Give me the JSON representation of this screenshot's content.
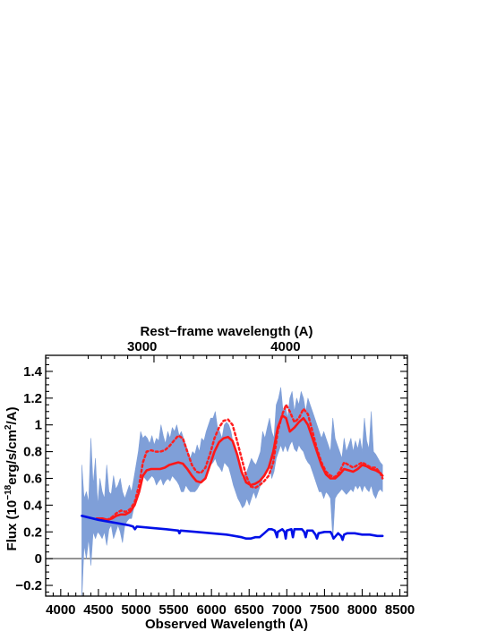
{
  "chart_data": {
    "type": "line",
    "xlabel": "Observed Wavelength (A)",
    "ylabel_main": "Flux (10",
    "ylabel_exp": "−18",
    "ylabel_mid": "erg/s/cm",
    "ylabel_exp2": "2",
    "ylabel_end": "/A)",
    "x2label": "Rest−frame wavelength (A)",
    "xlim": [
      3800,
      8600
    ],
    "ylim": [
      -0.28,
      1.52
    ],
    "x_ticks": [
      4000,
      4500,
      5000,
      5500,
      6000,
      6500,
      7000,
      7500,
      8000,
      8500
    ],
    "x_tick_labels": [
      "4000",
      "4500",
      "5000",
      "5500",
      "6000",
      "6500",
      "7000",
      "7500",
      "8000",
      "8500"
    ],
    "y_ticks": [
      -0.2,
      0,
      0.2,
      0.4,
      0.6,
      0.8,
      1,
      1.2,
      1.4
    ],
    "y_tick_labels": [
      "−0.2",
      "0",
      "0.2",
      "0.4",
      "0.6",
      "0.8",
      "1",
      "1.2",
      "1.4"
    ],
    "top_ticks_obs": [
      5080,
      6983
    ],
    "top_tick_labels": [
      "3000",
      "4000"
    ],
    "zero_line": 0,
    "series": [
      {
        "style": "fill",
        "color": "#7f9fd8",
        "x": [
          4280,
          4310,
          4340,
          4370,
          4400,
          4430,
          4460,
          4490,
          4520,
          4550,
          4580,
          4610,
          4640,
          4670,
          4700,
          4730,
          4760,
          4790,
          4820,
          4850,
          4880,
          4910,
          4940,
          4970,
          5000,
          5030,
          5060,
          5090,
          5120,
          5150,
          5180,
          5210,
          5240,
          5270,
          5300,
          5330,
          5360,
          5390,
          5420,
          5450,
          5480,
          5510,
          5540,
          5570,
          5600,
          5630,
          5660,
          5690,
          5720,
          5750,
          5780,
          5810,
          5840,
          5870,
          5900,
          5930,
          5960,
          5990,
          6020,
          6050,
          6080,
          6110,
          6140,
          6170,
          6200,
          6230,
          6260,
          6290,
          6320,
          6350,
          6380,
          6410,
          6440,
          6470,
          6500,
          6530,
          6560,
          6590,
          6620,
          6650,
          6680,
          6710,
          6740,
          6770,
          6800,
          6830,
          6860,
          6890,
          6920,
          6950,
          6980,
          7010,
          7040,
          7070,
          7100,
          7130,
          7160,
          7190,
          7220,
          7250,
          7280,
          7310,
          7340,
          7370,
          7400,
          7430,
          7460,
          7490,
          7520,
          7550,
          7580,
          7610,
          7640,
          7670,
          7700,
          7730,
          7760,
          7790,
          7820,
          7850,
          7880,
          7910,
          7940,
          7970,
          8000,
          8030,
          8060,
          8090,
          8120,
          8150,
          8180,
          8210,
          8240,
          8270
        ],
        "upper": [
          0.7,
          0.45,
          0.5,
          0.42,
          0.9,
          0.55,
          0.75,
          0.4,
          0.6,
          0.5,
          0.45,
          0.7,
          0.5,
          0.48,
          0.62,
          0.52,
          0.55,
          0.6,
          0.5,
          0.45,
          0.5,
          0.55,
          0.5,
          0.6,
          0.7,
          0.8,
          0.95,
          0.9,
          0.92,
          0.9,
          0.86,
          0.92,
          0.85,
          0.9,
          0.88,
          1.0,
          0.92,
          0.86,
          0.95,
          0.9,
          0.98,
          0.95,
          1.0,
          0.92,
          0.95,
          0.9,
          0.85,
          0.8,
          0.75,
          0.8,
          0.78,
          0.85,
          0.8,
          0.9,
          0.88,
          0.95,
          1.0,
          1.05,
          1.05,
          1.1,
          0.98,
          0.95,
          0.9,
          1.0,
          1.02,
          1.0,
          0.95,
          0.85,
          0.8,
          0.72,
          0.68,
          0.6,
          0.62,
          0.65,
          0.7,
          0.75,
          0.72,
          0.7,
          0.75,
          0.8,
          0.95,
          0.9,
          0.98,
          1.05,
          0.95,
          0.9,
          1.15,
          1.2,
          1.28,
          1.1,
          1.15,
          1.05,
          1.2,
          1.25,
          1.1,
          1.2,
          1.15,
          1.25,
          1.2,
          1.1,
          1.2,
          1.15,
          1.1,
          1.05,
          1.0,
          0.95,
          0.9,
          0.95,
          0.9,
          0.85,
          0.8,
          1.05,
          0.9,
          0.85,
          0.8,
          0.75,
          0.9,
          0.8,
          0.85,
          0.9,
          0.8,
          0.88,
          0.82,
          0.9,
          0.8,
          1.05,
          0.88,
          0.82,
          1.1,
          0.8,
          0.78,
          0.75,
          0.72,
          0.7
        ],
        "lower": [
          -0.3,
          0.1,
          0.0,
          0.15,
          -0.05,
          0.2,
          0.15,
          0.2,
          0.18,
          0.15,
          0.2,
          0.1,
          0.22,
          0.25,
          0.15,
          0.2,
          0.25,
          0.2,
          0.12,
          0.25,
          0.28,
          0.3,
          0.3,
          0.38,
          0.45,
          0.55,
          0.6,
          0.62,
          0.6,
          0.58,
          0.6,
          0.62,
          0.6,
          0.55,
          0.58,
          0.6,
          0.55,
          0.58,
          0.6,
          0.58,
          0.62,
          0.6,
          0.58,
          0.55,
          0.5,
          0.5,
          0.55,
          0.52,
          0.5,
          0.5,
          0.5,
          0.52,
          0.55,
          0.58,
          0.6,
          0.62,
          0.65,
          0.7,
          0.72,
          0.75,
          0.7,
          0.68,
          0.65,
          0.72,
          0.7,
          0.68,
          0.62,
          0.55,
          0.5,
          0.45,
          0.42,
          0.38,
          0.4,
          0.45,
          0.4,
          0.45,
          0.5,
          0.45,
          0.5,
          0.55,
          0.6,
          0.62,
          0.65,
          0.7,
          0.6,
          0.65,
          0.75,
          0.8,
          0.85,
          0.8,
          0.85,
          0.8,
          0.85,
          0.88,
          0.82,
          0.8,
          0.85,
          0.82,
          0.8,
          0.75,
          0.72,
          0.7,
          0.65,
          0.6,
          0.55,
          0.5,
          0.5,
          0.45,
          0.5,
          0.48,
          0.45,
          0.15,
          0.45,
          0.48,
          0.5,
          0.52,
          0.5,
          0.48,
          0.5,
          0.52,
          0.5,
          0.55,
          0.52,
          0.55,
          0.5,
          0.55,
          0.52,
          0.5,
          0.55,
          0.48,
          0.45,
          0.5,
          0.52,
          0.5
        ]
      },
      {
        "style": "dotted",
        "color": "#ff2020",
        "x": [
          4480,
          4550,
          4620,
          4680,
          4740,
          4800,
          4860,
          4920,
          4980,
          5040,
          5090,
          5140,
          5200,
          5260,
          5320,
          5380,
          5440,
          5500,
          5560,
          5620,
          5680,
          5740,
          5800,
          5860,
          5920,
          5980,
          6040,
          6100,
          6160,
          6220,
          6280,
          6340,
          6400,
          6460,
          6520,
          6580,
          6640,
          6700,
          6760,
          6820,
          6880,
          6940,
          6990,
          7040,
          7100,
          7160,
          7220,
          7280,
          7340,
          7400,
          7460,
          7520,
          7580,
          7640,
          7700,
          7760,
          7820,
          7880,
          7940,
          8000,
          8060,
          8120,
          8180,
          8240,
          8270
        ],
        "y": [
          0.3,
          0.3,
          0.29,
          0.31,
          0.34,
          0.36,
          0.35,
          0.37,
          0.42,
          0.55,
          0.72,
          0.8,
          0.81,
          0.8,
          0.8,
          0.81,
          0.84,
          0.88,
          0.92,
          0.9,
          0.8,
          0.7,
          0.65,
          0.64,
          0.68,
          0.78,
          0.9,
          0.98,
          1.03,
          1.04,
          1.0,
          0.88,
          0.75,
          0.62,
          0.54,
          0.53,
          0.55,
          0.58,
          0.62,
          0.72,
          0.95,
          1.08,
          1.15,
          1.1,
          1.02,
          1.05,
          1.12,
          1.08,
          0.95,
          0.82,
          0.72,
          0.65,
          0.62,
          0.61,
          0.65,
          0.72,
          0.7,
          0.68,
          0.7,
          0.72,
          0.7,
          0.68,
          0.68,
          0.64,
          0.6
        ]
      },
      {
        "style": "solid",
        "color": "#ff1818",
        "x": [
          4480,
          4550,
          4620,
          4680,
          4740,
          4800,
          4860,
          4920,
          4980,
          5040,
          5090,
          5140,
          5200,
          5260,
          5320,
          5380,
          5440,
          5500,
          5560,
          5620,
          5680,
          5740,
          5800,
          5860,
          5920,
          5980,
          6040,
          6100,
          6160,
          6220,
          6280,
          6340,
          6400,
          6460,
          6520,
          6580,
          6640,
          6700,
          6760,
          6820,
          6880,
          6940,
          6990,
          7040,
          7100,
          7160,
          7220,
          7280,
          7340,
          7400,
          7460,
          7520,
          7580,
          7640,
          7700,
          7760,
          7820,
          7880,
          7940,
          8000,
          8060,
          8120,
          8180,
          8240,
          8270
        ],
        "y": [
          0.3,
          0.3,
          0.29,
          0.3,
          0.32,
          0.33,
          0.33,
          0.35,
          0.4,
          0.5,
          0.62,
          0.66,
          0.67,
          0.67,
          0.67,
          0.68,
          0.7,
          0.71,
          0.72,
          0.71,
          0.67,
          0.62,
          0.58,
          0.57,
          0.6,
          0.7,
          0.8,
          0.87,
          0.9,
          0.91,
          0.88,
          0.78,
          0.65,
          0.57,
          0.55,
          0.56,
          0.58,
          0.62,
          0.68,
          0.8,
          0.98,
          1.07,
          1.05,
          0.95,
          0.98,
          1.02,
          1.05,
          1.0,
          0.9,
          0.8,
          0.7,
          0.63,
          0.6,
          0.6,
          0.63,
          0.67,
          0.66,
          0.65,
          0.67,
          0.7,
          0.69,
          0.67,
          0.66,
          0.64,
          0.62
        ]
      },
      {
        "style": "solid",
        "color": "#0010e8",
        "x": [
          4280,
          4500,
          4700,
          4900,
          4960,
          4985,
          5010,
          5200,
          5400,
          5560,
          5575,
          5590,
          5800,
          6000,
          6200,
          6400,
          6460,
          6520,
          6580,
          6640,
          6700,
          6760,
          6800,
          6840,
          6860,
          6870,
          6880,
          6940,
          6970,
          6985,
          7000,
          7060,
          7080,
          7100,
          7200,
          7230,
          7250,
          7270,
          7340,
          7380,
          7400,
          7420,
          7500,
          7580,
          7600,
          7620,
          7680,
          7720,
          7740,
          7760,
          7800,
          7900,
          8000,
          8100,
          8200,
          8270
        ],
        "y": [
          0.32,
          0.29,
          0.27,
          0.25,
          0.24,
          0.22,
          0.24,
          0.23,
          0.22,
          0.21,
          0.19,
          0.21,
          0.2,
          0.19,
          0.18,
          0.16,
          0.15,
          0.15,
          0.16,
          0.16,
          0.19,
          0.22,
          0.22,
          0.21,
          0.18,
          0.16,
          0.2,
          0.22,
          0.2,
          0.15,
          0.21,
          0.22,
          0.16,
          0.22,
          0.22,
          0.2,
          0.16,
          0.21,
          0.21,
          0.18,
          0.15,
          0.19,
          0.2,
          0.2,
          0.18,
          0.15,
          0.19,
          0.17,
          0.14,
          0.18,
          0.19,
          0.19,
          0.18,
          0.18,
          0.17,
          0.17
        ]
      }
    ]
  }
}
